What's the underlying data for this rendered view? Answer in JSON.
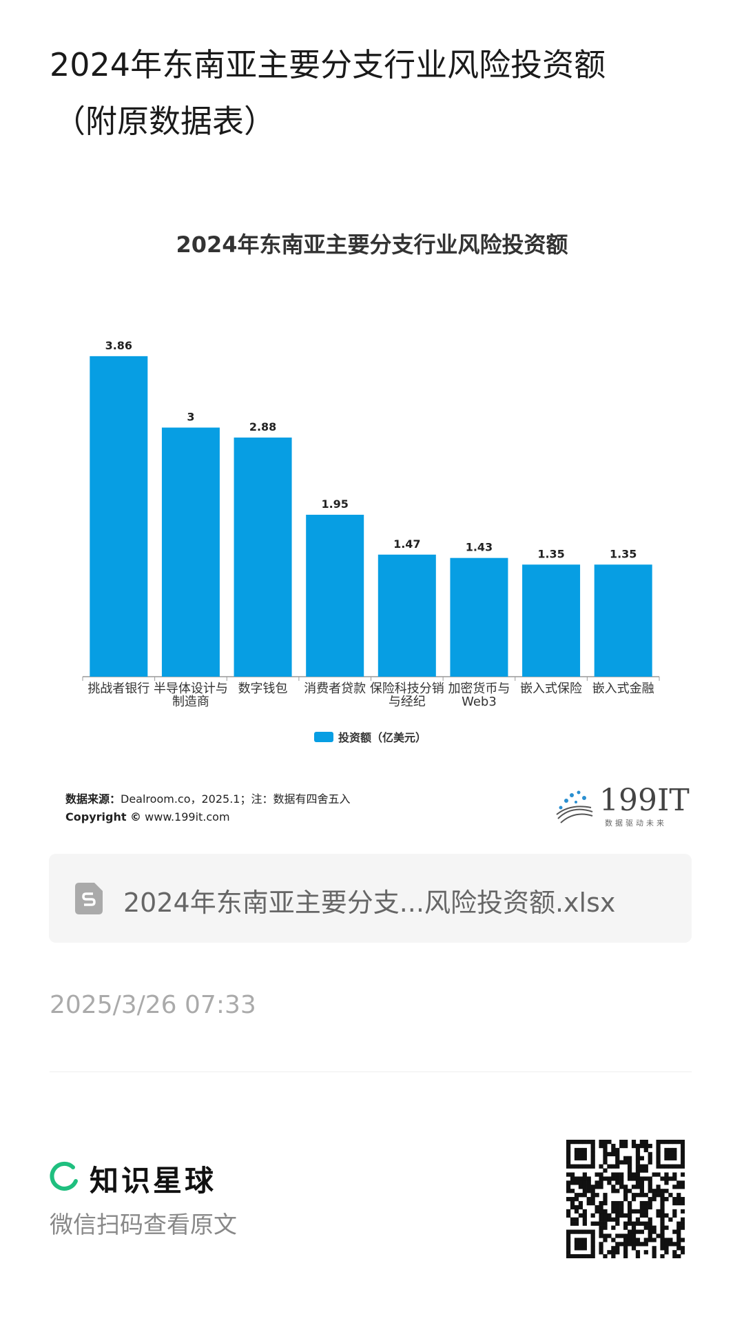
{
  "header": {
    "title": "2024年东南亚主要分支行业风险投资额",
    "subtitle": "（附原数据表）"
  },
  "chart_data": {
    "type": "bar",
    "title": "2024年东南亚主要分支行业风险投资额",
    "categories": [
      "挑战者银行",
      "半导体设计与制造商",
      "数字钱包",
      "消费者贷款",
      "保险科技分销与经纪",
      "加密货币与Web3",
      "嵌入式保险",
      "嵌入式金融"
    ],
    "series": [
      {
        "name": "投资额（亿美元）",
        "color": "#079ee3",
        "values": [
          3.86,
          3,
          2.88,
          1.95,
          1.47,
          1.43,
          1.35,
          1.35
        ]
      }
    ],
    "ylim": [
      0,
      4
    ],
    "grid": false,
    "legend": "bottom"
  },
  "source": {
    "label": "数据来源：",
    "text": "Dealroom.co，2025.1；注：数据有四舍五入",
    "copyright_label": "Copyright ©",
    "copyright": "www.199it.com"
  },
  "logo": {
    "name": "199IT",
    "slogan": "数据驱动未来"
  },
  "file": {
    "name": "2024年东南亚主要分支...风险投资额.xlsx"
  },
  "date": "2025/3/26 07:33",
  "footer": {
    "brand": "知识星球",
    "caption": "微信扫码查看原文"
  }
}
